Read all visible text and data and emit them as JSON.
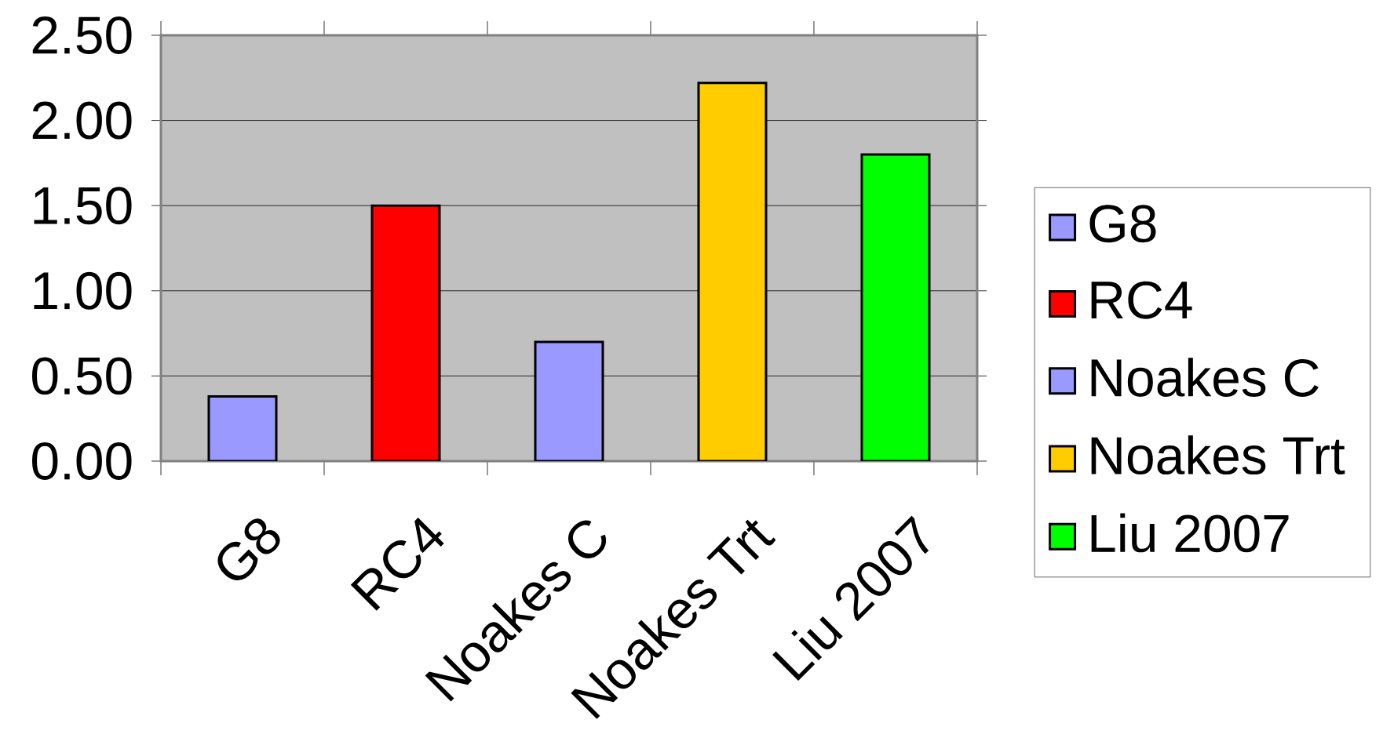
{
  "chart_data": {
    "type": "bar",
    "categories": [
      "G8",
      "RC4",
      "Noakes C",
      "Noakes Trt",
      "Liu 2007"
    ],
    "series": [
      {
        "name": "G8",
        "color": "#9999ff",
        "values": [
          0.38,
          null,
          null,
          null,
          null
        ]
      },
      {
        "name": "RC4",
        "color": "#ff0000",
        "values": [
          null,
          1.5,
          null,
          null,
          null
        ]
      },
      {
        "name": "Noakes C",
        "color": "#9999ff",
        "values": [
          null,
          null,
          0.7,
          null,
          null
        ]
      },
      {
        "name": "Noakes Trt",
        "color": "#ffcc00",
        "values": [
          null,
          null,
          null,
          2.22,
          null
        ]
      },
      {
        "name": "Liu 2007",
        "color": "#00ff00",
        "values": [
          null,
          null,
          null,
          null,
          1.8
        ]
      }
    ],
    "ylim": [
      0,
      2.5
    ],
    "yticks": [
      {
        "value": 0,
        "label": "0.00"
      },
      {
        "value": 0.5,
        "label": "0.50"
      },
      {
        "value": 1,
        "label": "1.00"
      },
      {
        "value": 1.5,
        "label": "1.50"
      },
      {
        "value": 2,
        "label": "2.00"
      },
      {
        "value": 2.5,
        "label": "2.50"
      }
    ],
    "grid": "y",
    "legend": "right"
  }
}
